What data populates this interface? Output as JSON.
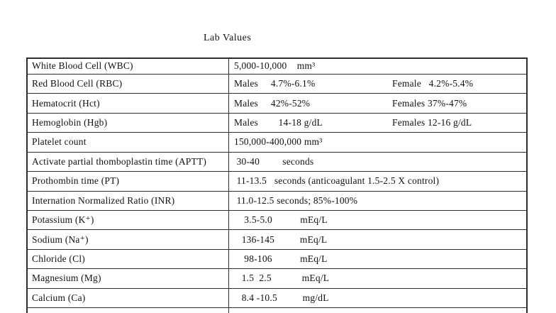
{
  "page": {
    "title": "Lab Values"
  },
  "table": {
    "rows": [
      {
        "label": "White Blood Cell (WBC)",
        "value": "5,000-10,000    mm³"
      },
      {
        "label": "Red Blood Cell (RBC)",
        "male": "Males     4.7%-6.1%",
        "female": "Female   4.2%-5.4%"
      },
      {
        "label": "Hematocrit (Hct)",
        "male": "Males     42%-52%",
        "female": "Females 37%-47%"
      },
      {
        "label": "Hemoglobin (Hgb)",
        "male": "Males        14-18 g/dL",
        "female": "Females 12-16 g/dL"
      },
      {
        "label": "Platelet count",
        "value": "150,000-400,000 mm³"
      },
      {
        "label": "Activate partial thomboplastin time (APTT)",
        "value": " 30-40         seconds"
      },
      {
        "label": "Prothombin time (PT)",
        "value": " 11-13.5   seconds (anticoagulant 1.5-2.5 X control)"
      },
      {
        "label": "Internation Normalized Ratio (INR)",
        "value": " 11.0-12.5 seconds; 85%-100%"
      },
      {
        "label": "Potassium (K⁺)",
        "value": "    3.5-5.0           mEq/L"
      },
      {
        "label": "Sodium (Na⁺)",
        "value": "   136-145          mEq/L"
      },
      {
        "label": "Chloride (Cl)",
        "value": "    98-106           mEq/L"
      },
      {
        "label": "Magnesium (Mg)",
        "value": "   1.5  2.5            mEq/L"
      },
      {
        "label": "Calcium (Ca)",
        "value": "   8.4 -10.5          mg/dL"
      }
    ]
  }
}
